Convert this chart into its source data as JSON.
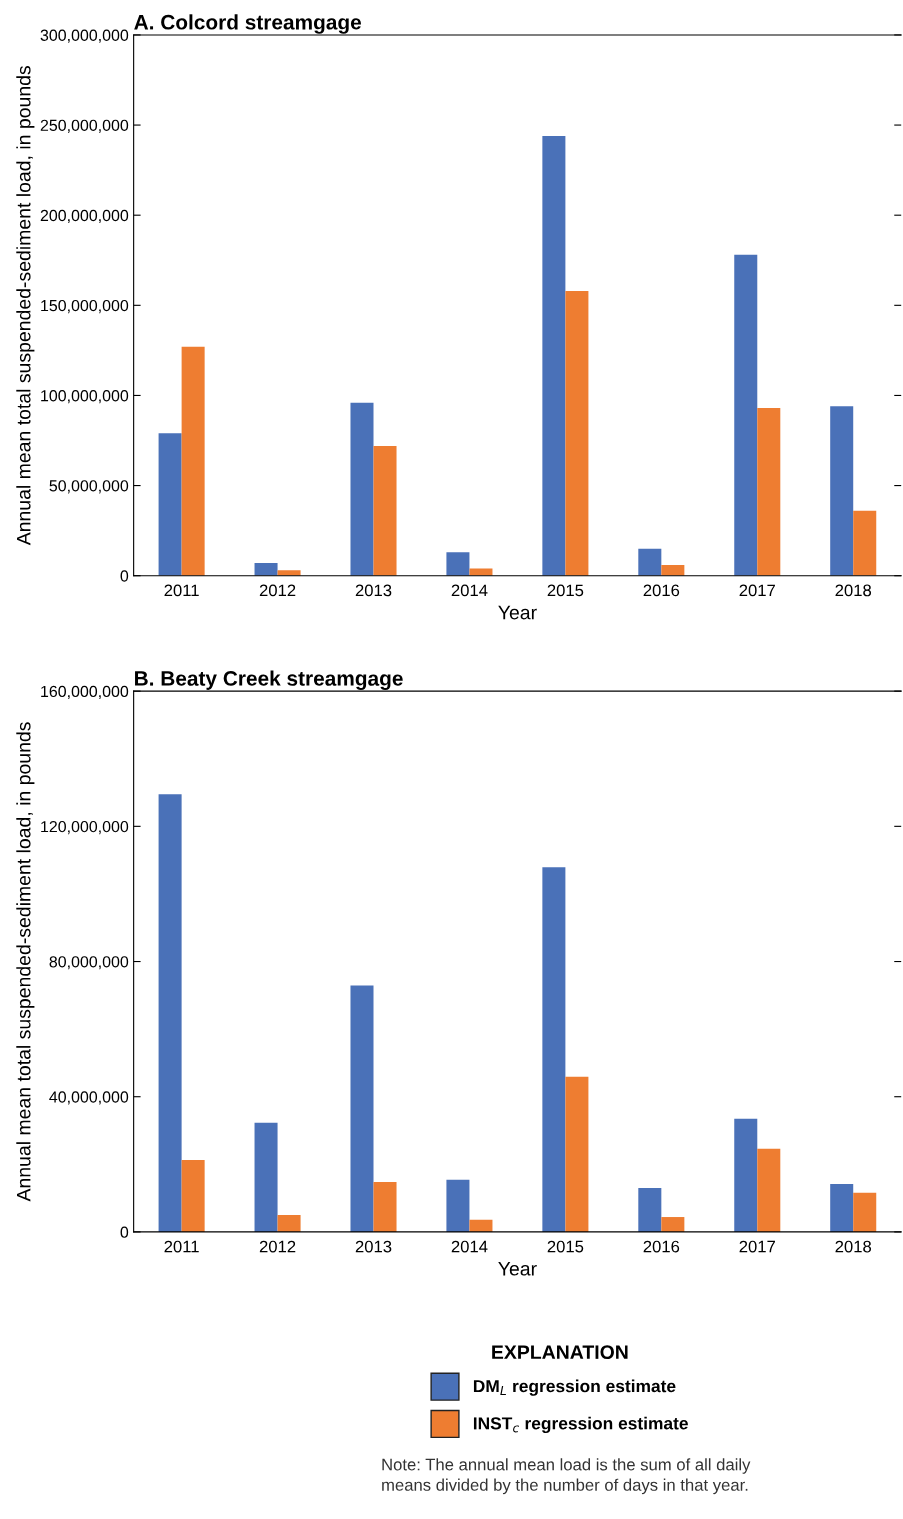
{
  "chart_data": [
    {
      "type": "bar",
      "title": "A. Colcord streamgage",
      "xlabel": "Year",
      "ylabel": "Annual mean total suspended-sediment load, in pounds",
      "categories": [
        "2011",
        "2012",
        "2013",
        "2014",
        "2015",
        "2016",
        "2017",
        "2018"
      ],
      "series": [
        {
          "name": "DM$_{L}$ regression estimate",
          "color": "#4a71b8",
          "values": [
            79000000,
            7000000,
            96000000,
            13000000,
            244000000,
            15000000,
            178000000,
            94000000
          ]
        },
        {
          "name": "INST$_{c}$ regression estimate",
          "color": "#ee7d31",
          "values": [
            127000000,
            3000000,
            72000000,
            4000000,
            158000000,
            6000000,
            93000000,
            36000000
          ]
        }
      ],
      "ylim": [
        0,
        300000000
      ],
      "yticks": [
        0,
        {
          "value": 50000000,
          "label": "50,000,000"
        },
        {
          "value": 100000000,
          "label": "100,000,000"
        },
        {
          "value": 150000000,
          "label": "150,000,000"
        },
        {
          "value": 200000000,
          "label": "200,000,000"
        },
        {
          "value": 250000000,
          "label": "250,000,000"
        },
        {
          "value": 300000000,
          "label": "300,000,000"
        }
      ],
      "grid": false,
      "legend": "bottom",
      "legend_title": "EXPLANATION"
    },
    {
      "type": "bar",
      "title": "B. Beaty Creek streamgage",
      "xlabel": "Year",
      "ylabel": "Annual mean total suspended-sediment load, in pounds",
      "categories": [
        "2011",
        "2012",
        "2013",
        "2014",
        "2015",
        "2016",
        "2017",
        "2018"
      ],
      "series": [
        {
          "color": "#4a71b8",
          "values": [
            129500000,
            32300000,
            72900000,
            15400000,
            107900000,
            13000000,
            33500000,
            14200000
          ]
        },
        {
          "color": "#ee7d31",
          "values": [
            21300000,
            5000000,
            14800000,
            3600000,
            45900000,
            4400000,
            24600000,
            11600000
          ]
        }
      ],
      "ylim": [
        0,
        160000000
      ],
      "yticks": [
        0,
        {
          "value": 40000000,
          "label": "40,000,000"
        },
        {
          "value": 80000000,
          "label": "80,000,000"
        },
        {
          "value": 120000000,
          "label": "120,000,000"
        },
        {
          "value": 160000000,
          "label": "160,000,000"
        }
      ],
      "grid": false,
      "annotations": [
        "Note: The annual mean load is the sum of all daily means divided by the number of days in that year."
      ]
    }
  ]
}
